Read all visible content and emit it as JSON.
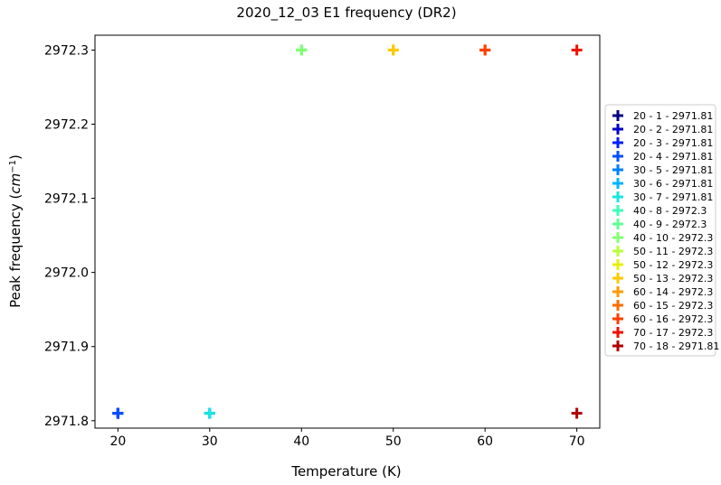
{
  "chart_data": {
    "type": "scatter",
    "title": "2020_12_03 E1 frequency (DR2)",
    "xlabel": "Temperature (K)",
    "ylabel_prefix": "Peak frequency (",
    "ylabel_unit": "cm",
    "ylabel_exp": "−1",
    "ylabel_suffix": ")",
    "xlim": [
      17.5,
      72.5
    ],
    "ylim": [
      2971.79,
      2972.32
    ],
    "x_ticks": [
      20,
      30,
      40,
      50,
      60,
      70
    ],
    "y_ticks": [
      2971.8,
      2971.9,
      2972.0,
      2972.1,
      2972.2,
      2972.3
    ],
    "x_tick_labels": [
      "20",
      "30",
      "40",
      "50",
      "60",
      "70"
    ],
    "y_tick_labels": [
      "2971.8",
      "2971.9",
      "2972.0",
      "2972.1",
      "2972.2",
      "2972.3"
    ],
    "marker": "plus",
    "legend_position": "right",
    "series": [
      {
        "name": "20 - 1 - 2971.81",
        "x": 20,
        "y": 2971.81,
        "color": "#00007f"
      },
      {
        "name": "20 - 2 - 2971.81",
        "x": 20,
        "y": 2971.81,
        "color": "#0000c8"
      },
      {
        "name": "20 - 3 - 2971.81",
        "x": 20,
        "y": 2971.81,
        "color": "#0020ff"
      },
      {
        "name": "20 - 4 - 2971.81",
        "x": 20,
        "y": 2971.81,
        "color": "#0050ff"
      },
      {
        "name": "30 - 5 - 2971.81",
        "x": 30,
        "y": 2971.81,
        "color": "#0080ff"
      },
      {
        "name": "30 - 6 - 2971.81",
        "x": 30,
        "y": 2971.81,
        "color": "#00b4ff"
      },
      {
        "name": "30 - 7 - 2971.81",
        "x": 30,
        "y": 2971.81,
        "color": "#16e6e0"
      },
      {
        "name": "40 - 8 - 2972.3",
        "x": 40,
        "y": 2972.3,
        "color": "#3dffb9"
      },
      {
        "name": "40 - 9 - 2972.3",
        "x": 40,
        "y": 2972.3,
        "color": "#60ff96"
      },
      {
        "name": "40 - 10 - 2972.3",
        "x": 40,
        "y": 2972.3,
        "color": "#83ff73"
      },
      {
        "name": "50 - 11 - 2972.3",
        "x": 50,
        "y": 2972.3,
        "color": "#b9ff3d"
      },
      {
        "name": "50 - 12 - 2972.3",
        "x": 50,
        "y": 2972.3,
        "color": "#e6f00e"
      },
      {
        "name": "50 - 13 - 2972.3",
        "x": 50,
        "y": 2972.3,
        "color": "#ffc800"
      },
      {
        "name": "60 - 14 - 2972.3",
        "x": 60,
        "y": 2972.3,
        "color": "#ff9a00"
      },
      {
        "name": "60 - 15 - 2972.3",
        "x": 60,
        "y": 2972.3,
        "color": "#ff6c00"
      },
      {
        "name": "60 - 16 - 2972.3",
        "x": 60,
        "y": 2972.3,
        "color": "#ff3e00"
      },
      {
        "name": "70 - 17 - 2972.3",
        "x": 70,
        "y": 2972.3,
        "color": "#f01000"
      },
      {
        "name": "70 - 18 - 2971.81",
        "x": 70,
        "y": 2971.81,
        "color": "#b00000"
      }
    ]
  }
}
